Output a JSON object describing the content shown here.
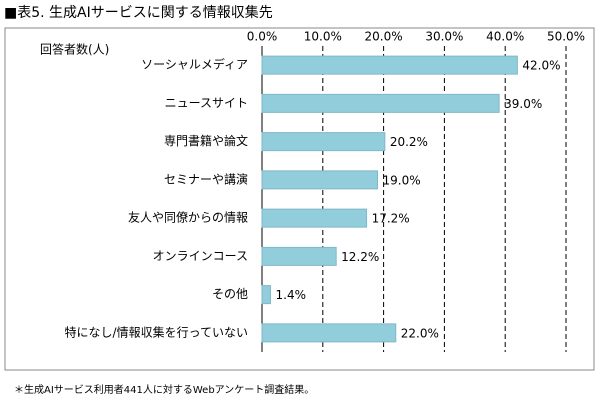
{
  "chart_data": {
    "type": "bar",
    "orientation": "horizontal",
    "title": "■表5. 生成AIサービスに関する情報収集先",
    "y_label": "回答者数(人)",
    "footnote": "＊生成AIサービス利用者441人に対するWebアンケート調査結果。",
    "categories": [
      "ソーシャルメディア",
      "ニュースサイト",
      "専門書籍や論文",
      "セミナーや講演",
      "友人や同僚からの情報",
      "オンラインコース",
      "その他",
      "特になし/情報収集を行っていない"
    ],
    "values": [
      42.0,
      39.0,
      20.2,
      19.0,
      17.2,
      12.2,
      1.4,
      22.0
    ],
    "value_labels": [
      "42.0%",
      "39.0%",
      "20.2%",
      "19.0%",
      "17.2%",
      "12.2%",
      "1.4%",
      "22.0%"
    ],
    "color": "#92cddc",
    "xlim": [
      0,
      50
    ],
    "xticks": [
      {
        "value": 0,
        "label": "0.0%"
      },
      {
        "value": 10,
        "label": "10.0%"
      },
      {
        "value": 20,
        "label": "20.0%"
      },
      {
        "value": 30,
        "label": "30.0%"
      },
      {
        "value": 40,
        "label": "40.0%"
      },
      {
        "value": 50,
        "label": "50.0%"
      }
    ],
    "grid": true
  }
}
